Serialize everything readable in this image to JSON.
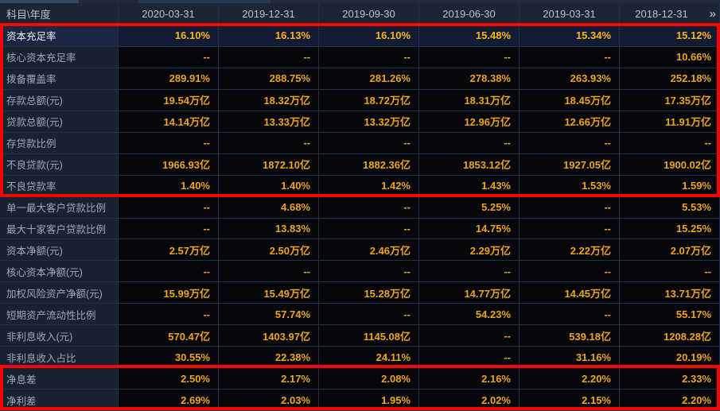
{
  "table": {
    "corner_label": "科目\\年度",
    "columns": [
      "2020-03-31",
      "2019-12-31",
      "2019-09-30",
      "2019-06-30",
      "2019-03-31",
      "2018-12-31"
    ],
    "more_columns_icon": "»",
    "rows": [
      {
        "label": "资本充足率",
        "highlighted": true,
        "values": [
          "16.10%",
          "16.13%",
          "16.10%",
          "15.48%",
          "15.34%",
          "15.12%"
        ]
      },
      {
        "label": "核心资本充足率",
        "highlighted": false,
        "values": [
          "--",
          "--",
          "--",
          "--",
          "--",
          "10.66%"
        ]
      },
      {
        "label": "拨备覆盖率",
        "highlighted": false,
        "values": [
          "289.91%",
          "288.75%",
          "281.26%",
          "278.38%",
          "263.93%",
          "252.18%"
        ]
      },
      {
        "label": "存款总额(元)",
        "highlighted": false,
        "values": [
          "19.54万亿",
          "18.32万亿",
          "18.72万亿",
          "18.31万亿",
          "18.45万亿",
          "17.35万亿"
        ]
      },
      {
        "label": "贷款总额(元)",
        "highlighted": false,
        "values": [
          "14.14万亿",
          "13.33万亿",
          "13.32万亿",
          "12.96万亿",
          "12.66万亿",
          "11.91万亿"
        ]
      },
      {
        "label": "存贷款比例",
        "highlighted": false,
        "values": [
          "--",
          "--",
          "--",
          "--",
          "--",
          "--"
        ]
      },
      {
        "label": "不良贷款(元)",
        "highlighted": false,
        "values": [
          "1966.93亿",
          "1872.10亿",
          "1882.36亿",
          "1853.12亿",
          "1927.05亿",
          "1900.02亿"
        ]
      },
      {
        "label": "不良贷款率",
        "highlighted": false,
        "values": [
          "1.40%",
          "1.40%",
          "1.42%",
          "1.43%",
          "1.53%",
          "1.59%"
        ]
      },
      {
        "label": "单一最大客户贷款比例",
        "highlighted": false,
        "values": [
          "--",
          "4.68%",
          "--",
          "5.25%",
          "--",
          "5.53%"
        ]
      },
      {
        "label": "最大十家客户贷款比例",
        "highlighted": false,
        "values": [
          "--",
          "13.83%",
          "--",
          "14.75%",
          "--",
          "15.25%"
        ]
      },
      {
        "label": "资本净额(元)",
        "highlighted": false,
        "values": [
          "2.57万亿",
          "2.50万亿",
          "2.46万亿",
          "2.29万亿",
          "2.22万亿",
          "2.07万亿"
        ]
      },
      {
        "label": "核心资本净额(元)",
        "highlighted": false,
        "values": [
          "--",
          "--",
          "--",
          "--",
          "--",
          "--"
        ]
      },
      {
        "label": "加权风险资产净额(元)",
        "highlighted": false,
        "values": [
          "15.99万亿",
          "15.49万亿",
          "15.28万亿",
          "14.77万亿",
          "14.45万亿",
          "13.71万亿"
        ]
      },
      {
        "label": "短期资产流动性比例",
        "highlighted": false,
        "values": [
          "--",
          "57.74%",
          "--",
          "54.23%",
          "--",
          "55.17%"
        ]
      },
      {
        "label": "非利息收入(元)",
        "highlighted": false,
        "values": [
          "570.47亿",
          "1403.97亿",
          "1145.08亿",
          "--",
          "539.18亿",
          "1208.28亿"
        ]
      },
      {
        "label": "非利息收入占比",
        "highlighted": false,
        "values": [
          "30.55%",
          "22.38%",
          "24.11%",
          "--",
          "31.16%",
          "20.19%"
        ]
      },
      {
        "label": "净息差",
        "highlighted": false,
        "values": [
          "2.50%",
          "2.17%",
          "2.08%",
          "2.16%",
          "2.20%",
          "2.33%"
        ]
      },
      {
        "label": "净利差",
        "highlighted": false,
        "values": [
          "2.69%",
          "2.03%",
          "1.95%",
          "2.02%",
          "2.15%",
          "2.20%"
        ]
      }
    ]
  },
  "annotations": {
    "boxes": [
      {
        "name": "highlight-box-top",
        "row_start": "资本充足率",
        "row_end": "不良贷款率"
      },
      {
        "name": "highlight-box-bottom",
        "row_start": "净息差",
        "row_end": "净利差"
      }
    ]
  },
  "colors": {
    "box-red": "#fe0000",
    "accent": "#eda41b",
    "accent-bright": "#ffb415",
    "header-bg": "#1b2534",
    "header-text": "#b7c3d3",
    "label-bg": "#192230",
    "label-text": "#9aa8ba",
    "cell-bg": "#05070a",
    "hl-cell-bg": "#121d35",
    "hl-label-bg": "#1a2742",
    "grid-line": "#22304a"
  }
}
